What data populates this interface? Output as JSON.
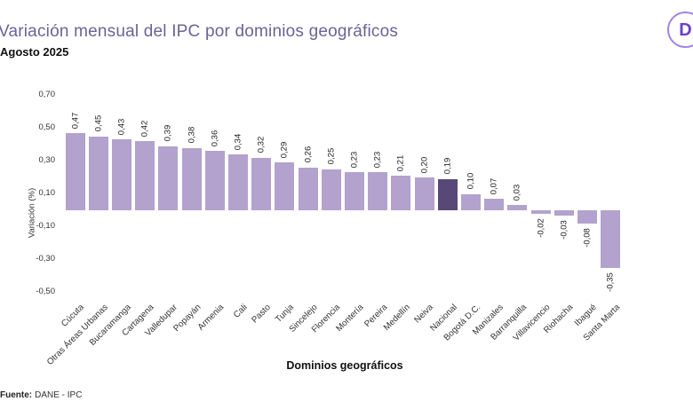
{
  "header": {
    "logo_letter": "D"
  },
  "chart_data": {
    "type": "bar",
    "title": "Variación mensual del IPC por dominios geográficos",
    "subtitle": "Agosto 2025",
    "xlabel": "Dominios geográficos",
    "ylabel": "Variación (%)",
    "ylim": [
      -0.5,
      0.7
    ],
    "grid": false,
    "legend": "none",
    "yticks": [
      "0,70",
      "0,50",
      "0,30",
      "0,10",
      "-0,10",
      "-0,30",
      "-0,50"
    ],
    "ytick_values": [
      0.7,
      0.5,
      0.3,
      0.1,
      -0.1,
      -0.3,
      -0.5
    ],
    "categories": [
      "Cúcuta",
      "Otras Áreas Urbanas",
      "Bucaramanga",
      "Cartagena",
      "Valledupar",
      "Popayán",
      "Armenia",
      "Cali",
      "Pasto",
      "Tunja",
      "Sincelejo",
      "Florencia",
      "Montería",
      "Pereira",
      "Medellín",
      "Neiva",
      "Nacional",
      "Bogotá D.C.",
      "Manizales",
      "Barranquilla",
      "Villavicencio",
      "Riohacha",
      "Ibagué",
      "Santa Marta"
    ],
    "values": [
      0.47,
      0.45,
      0.43,
      0.42,
      0.39,
      0.38,
      0.36,
      0.34,
      0.32,
      0.29,
      0.26,
      0.25,
      0.23,
      0.23,
      0.21,
      0.2,
      0.19,
      0.1,
      0.07,
      0.03,
      -0.02,
      -0.03,
      -0.08,
      -0.35
    ],
    "value_labels": [
      "0,47",
      "0,45",
      "0,43",
      "0,42",
      "0,39",
      "0,38",
      "0,36",
      "0,34",
      "0,32",
      "0,29",
      "0,26",
      "0,25",
      "0,23",
      "0,23",
      "0,21",
      "0,20",
      "0,19",
      "0,10",
      "0,07",
      "0,03",
      "-0,02",
      "-0,03",
      "-0,08",
      "-0,35"
    ],
    "highlight_category": "Nacional",
    "highlight_index": 16,
    "colors": {
      "bar": "#b2a2cd",
      "highlight": "#584878",
      "title": "#6b6397"
    }
  },
  "footer": {
    "source_label": "Fuente:",
    "source_value": "DANE - IPC"
  }
}
